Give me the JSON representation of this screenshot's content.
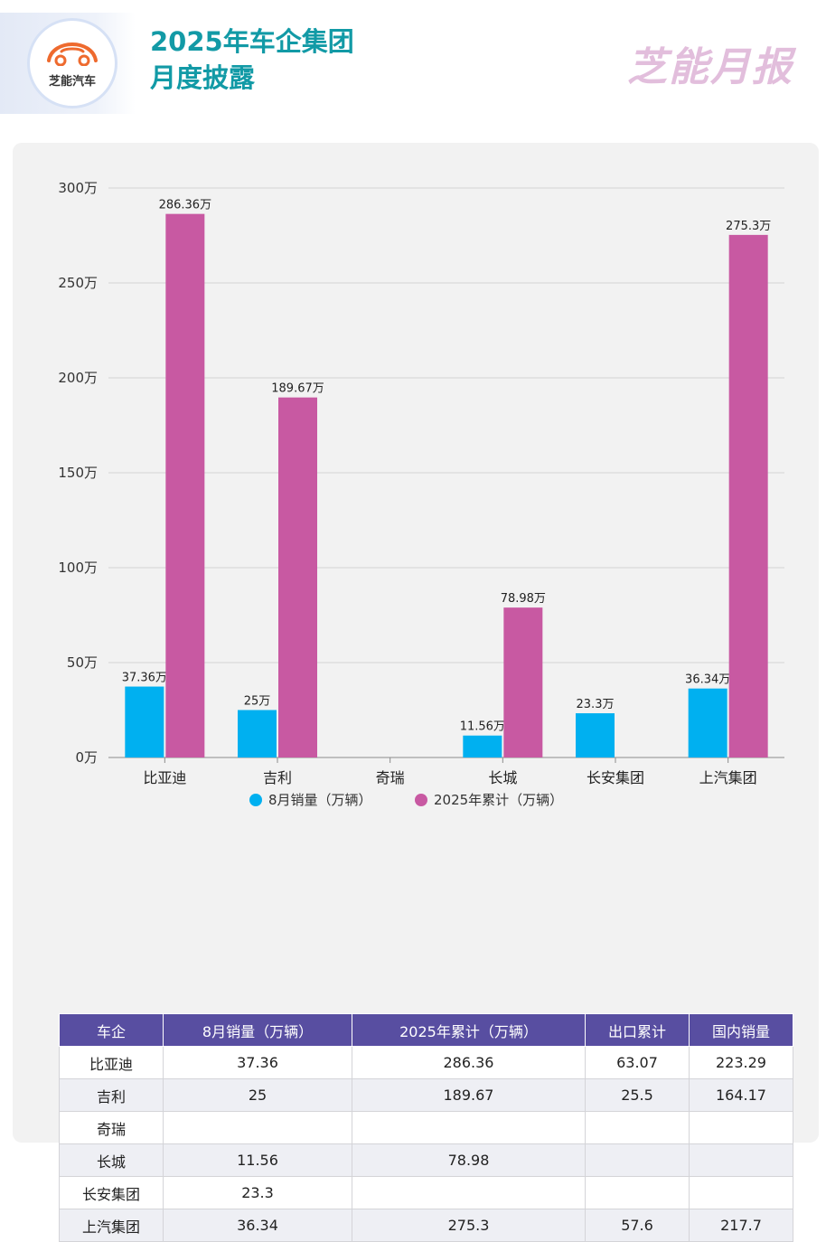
{
  "header": {
    "logo_text": "芝能汽车",
    "title_line1": "2025年车企集团",
    "title_line2": "月度披露",
    "brand": "芝能月报"
  },
  "colors": {
    "series_1": "#00b0f0",
    "series_2": "#c859a2",
    "title": "#129aa6",
    "table_header": "#584ea1"
  },
  "chart_data": {
    "type": "bar",
    "categories": [
      "比亚迪",
      "吉利",
      "奇瑞",
      "长城",
      "长安集团",
      "上汽集团"
    ],
    "series": [
      {
        "name": "8月销量（万辆）",
        "values": [
          37.36,
          25,
          null,
          11.56,
          23.3,
          36.34
        ],
        "labels": [
          "37.36万",
          "25万",
          "",
          "11.56万",
          "23.3万",
          "36.34万"
        ]
      },
      {
        "name": "2025年累计（万辆）",
        "values": [
          286.36,
          189.67,
          null,
          78.98,
          null,
          275.3
        ],
        "labels": [
          "286.36万",
          "189.67万",
          "",
          "78.98万",
          "",
          "275.3万"
        ]
      }
    ],
    "ylim": [
      0,
      300
    ],
    "yticks": [
      0,
      50,
      100,
      150,
      200,
      250,
      300
    ],
    "ytick_labels": [
      "0万",
      "50万",
      "100万",
      "150万",
      "200万",
      "250万",
      "300万"
    ],
    "grid": true,
    "legend": "bottom"
  },
  "table": {
    "headers": [
      "车企",
      "8月销量（万辆）",
      "2025年累计（万辆）",
      "出口累计",
      "国内销量"
    ],
    "rows": [
      [
        "比亚迪",
        "37.36",
        "286.36",
        "63.07",
        "223.29"
      ],
      [
        "吉利",
        "25",
        "189.67",
        "25.5",
        "164.17"
      ],
      [
        "奇瑞",
        "",
        "",
        "",
        ""
      ],
      [
        "长城",
        "11.56",
        "78.98",
        "",
        ""
      ],
      [
        "长安集团",
        "23.3",
        "",
        "",
        ""
      ],
      [
        "上汽集团",
        "36.34",
        "275.3",
        "57.6",
        "217.7"
      ]
    ]
  }
}
